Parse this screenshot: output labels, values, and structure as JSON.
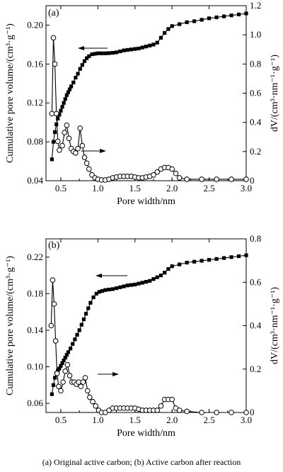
{
  "caption": "(a) Original active carbon; (b) Active  carbon after reaction",
  "chart_data": [
    {
      "type": "line",
      "panel_label": "(a)",
      "xlabel": "Pore width/nm",
      "ylabel_left": "Cumulative pore volume/(cm³·g⁻¹)",
      "ylabel_right": "dV/(cm³·nm⁻¹·g⁻¹)",
      "xlim": [
        0.3,
        3.0
      ],
      "ylim_left": [
        0.04,
        0.22
      ],
      "ylim_right": [
        0,
        1.2
      ],
      "xticks": [
        "0.5",
        "1.0",
        "1.5",
        "2.0",
        "2.5",
        "3.0"
      ],
      "xtick_values": [
        0.5,
        1.0,
        1.5,
        2.0,
        2.5,
        3.0
      ],
      "yticks_left": [
        "0.04",
        "0.08",
        "0.12",
        "0.16",
        "0.20"
      ],
      "ytick_values_left": [
        0.04,
        0.08,
        0.12,
        0.16,
        0.2
      ],
      "yticks_right": [
        "0",
        "0.2",
        "0.4",
        "0.6",
        "0.8",
        "1.0",
        "1.2"
      ],
      "ytick_values_right": [
        0,
        0.2,
        0.4,
        0.6,
        0.8,
        1.0,
        1.2
      ],
      "series": [
        {
          "axis": "left",
          "marker": "filled-square",
          "x": [
            0.38,
            0.4,
            0.42,
            0.44,
            0.46,
            0.48,
            0.5,
            0.52,
            0.54,
            0.56,
            0.58,
            0.6,
            0.62,
            0.64,
            0.67,
            0.7,
            0.73,
            0.76,
            0.79,
            0.82,
            0.85,
            0.88,
            0.92,
            0.96,
            1.0,
            1.05,
            1.1,
            1.15,
            1.2,
            1.25,
            1.3,
            1.35,
            1.4,
            1.45,
            1.5,
            1.55,
            1.6,
            1.65,
            1.7,
            1.75,
            1.8,
            1.85,
            1.9,
            1.95,
            2.0,
            2.1,
            2.2,
            2.3,
            2.4,
            2.5,
            2.6,
            2.7,
            2.8,
            2.9,
            3.0
          ],
          "y": [
            0.062,
            0.08,
            0.09,
            0.098,
            0.104,
            0.108,
            0.112,
            0.116,
            0.12,
            0.124,
            0.128,
            0.131,
            0.134,
            0.137,
            0.141,
            0.146,
            0.15,
            0.155,
            0.159,
            0.163,
            0.166,
            0.168,
            0.17,
            0.1705,
            0.171,
            0.171,
            0.171,
            0.1712,
            0.1715,
            0.172,
            0.173,
            0.174,
            0.1745,
            0.175,
            0.1755,
            0.176,
            0.177,
            0.178,
            0.179,
            0.18,
            0.182,
            0.187,
            0.192,
            0.196,
            0.199,
            0.201,
            0.203,
            0.204,
            0.2055,
            0.207,
            0.208,
            0.209,
            0.21,
            0.211,
            0.212
          ]
        },
        {
          "axis": "right",
          "marker": "open-circle",
          "x": [
            0.38,
            0.4,
            0.42,
            0.44,
            0.46,
            0.48,
            0.52,
            0.55,
            0.58,
            0.61,
            0.64,
            0.67,
            0.7,
            0.73,
            0.76,
            0.79,
            0.82,
            0.85,
            0.88,
            0.92,
            0.96,
            1.0,
            1.05,
            1.1,
            1.15,
            1.2,
            1.25,
            1.3,
            1.35,
            1.4,
            1.45,
            1.5,
            1.55,
            1.6,
            1.65,
            1.7,
            1.75,
            1.8,
            1.85,
            1.9,
            1.95,
            2.0,
            2.05,
            2.1,
            2.2,
            2.4,
            2.6,
            2.8,
            3.0
          ],
          "y": [
            0.46,
            0.98,
            0.8,
            0.46,
            0.27,
            0.21,
            0.24,
            0.33,
            0.38,
            0.29,
            0.22,
            0.2,
            0.19,
            0.22,
            0.36,
            0.24,
            0.16,
            0.12,
            0.08,
            0.04,
            0.02,
            0.01,
            0.005,
            0.005,
            0.01,
            0.02,
            0.025,
            0.03,
            0.03,
            0.03,
            0.03,
            0.025,
            0.02,
            0.02,
            0.025,
            0.03,
            0.04,
            0.06,
            0.08,
            0.09,
            0.09,
            0.08,
            0.05,
            0.02,
            0.01,
            0.01,
            0.01,
            0.01,
            0.01
          ]
        }
      ]
    },
    {
      "type": "line",
      "panel_label": "(b)",
      "xlabel": "Pore width/nm",
      "ylabel_left": "Cumulative pore volume/(cm³·g⁻¹)",
      "ylabel_right": "dV/(cm³·nm⁻¹·g⁻¹)",
      "xlim": [
        0.3,
        3.0
      ],
      "ylim_left": [
        0.05,
        0.24
      ],
      "ylim_right": [
        0,
        0.8
      ],
      "xticks": [
        "0.5",
        "1.0",
        "1.5",
        "2.0",
        "2.5",
        "3.0"
      ],
      "xtick_values": [
        0.5,
        1.0,
        1.5,
        2.0,
        2.5,
        3.0
      ],
      "yticks_left": [
        "0.06",
        "0.10",
        "0.14",
        "0.18",
        "0.22"
      ],
      "ytick_values_left": [
        0.06,
        0.1,
        0.14,
        0.18,
        0.22
      ],
      "yticks_right": [
        "0",
        "0.2",
        "0.4",
        "0.6",
        "0.8"
      ],
      "ytick_values_right": [
        0,
        0.2,
        0.4,
        0.6,
        0.8
      ],
      "series": [
        {
          "axis": "left",
          "marker": "filled-square",
          "x": [
            0.38,
            0.4,
            0.42,
            0.44,
            0.46,
            0.48,
            0.5,
            0.52,
            0.54,
            0.56,
            0.58,
            0.6,
            0.63,
            0.66,
            0.69,
            0.72,
            0.75,
            0.78,
            0.81,
            0.84,
            0.87,
            0.9,
            0.94,
            0.98,
            1.02,
            1.06,
            1.1,
            1.15,
            1.2,
            1.25,
            1.3,
            1.35,
            1.4,
            1.45,
            1.5,
            1.55,
            1.6,
            1.65,
            1.7,
            1.75,
            1.8,
            1.85,
            1.9,
            1.95,
            2.0,
            2.1,
            2.2,
            2.3,
            2.4,
            2.5,
            2.6,
            2.7,
            2.8,
            2.9,
            3.0
          ],
          "y": [
            0.07,
            0.08,
            0.088,
            0.093,
            0.096,
            0.098,
            0.101,
            0.104,
            0.107,
            0.11,
            0.113,
            0.116,
            0.12,
            0.125,
            0.13,
            0.135,
            0.14,
            0.146,
            0.152,
            0.158,
            0.164,
            0.17,
            0.176,
            0.18,
            0.182,
            0.183,
            0.184,
            0.1845,
            0.185,
            0.186,
            0.187,
            0.188,
            0.189,
            0.1895,
            0.19,
            0.191,
            0.192,
            0.193,
            0.194,
            0.196,
            0.198,
            0.2,
            0.203,
            0.207,
            0.21,
            0.212,
            0.214,
            0.215,
            0.216,
            0.217,
            0.218,
            0.219,
            0.22,
            0.221,
            0.222
          ]
        },
        {
          "axis": "right",
          "marker": "open-circle",
          "x": [
            0.37,
            0.39,
            0.41,
            0.43,
            0.45,
            0.47,
            0.5,
            0.53,
            0.56,
            0.59,
            0.62,
            0.65,
            0.68,
            0.71,
            0.74,
            0.77,
            0.8,
            0.83,
            0.86,
            0.89,
            0.93,
            0.97,
            1.01,
            1.05,
            1.1,
            1.15,
            1.2,
            1.25,
            1.3,
            1.35,
            1.4,
            1.45,
            1.5,
            1.55,
            1.6,
            1.65,
            1.7,
            1.75,
            1.8,
            1.85,
            1.9,
            1.95,
            2.0,
            2.05,
            2.1,
            2.2,
            2.4,
            2.6,
            2.8,
            3.0
          ],
          "y": [
            0.4,
            0.61,
            0.5,
            0.33,
            0.18,
            0.12,
            0.1,
            0.14,
            0.19,
            0.22,
            0.17,
            0.14,
            0.14,
            0.13,
            0.14,
            0.12,
            0.14,
            0.16,
            0.1,
            0.07,
            0.05,
            0.03,
            0.01,
            0.0,
            0.0,
            0.01,
            0.02,
            0.02,
            0.02,
            0.02,
            0.02,
            0.02,
            0.02,
            0.015,
            0.01,
            0.01,
            0.01,
            0.01,
            0.01,
            0.03,
            0.06,
            0.06,
            0.06,
            0.02,
            0.01,
            0.005,
            0.0,
            0.0,
            0.0,
            0.0
          ]
        }
      ]
    }
  ]
}
